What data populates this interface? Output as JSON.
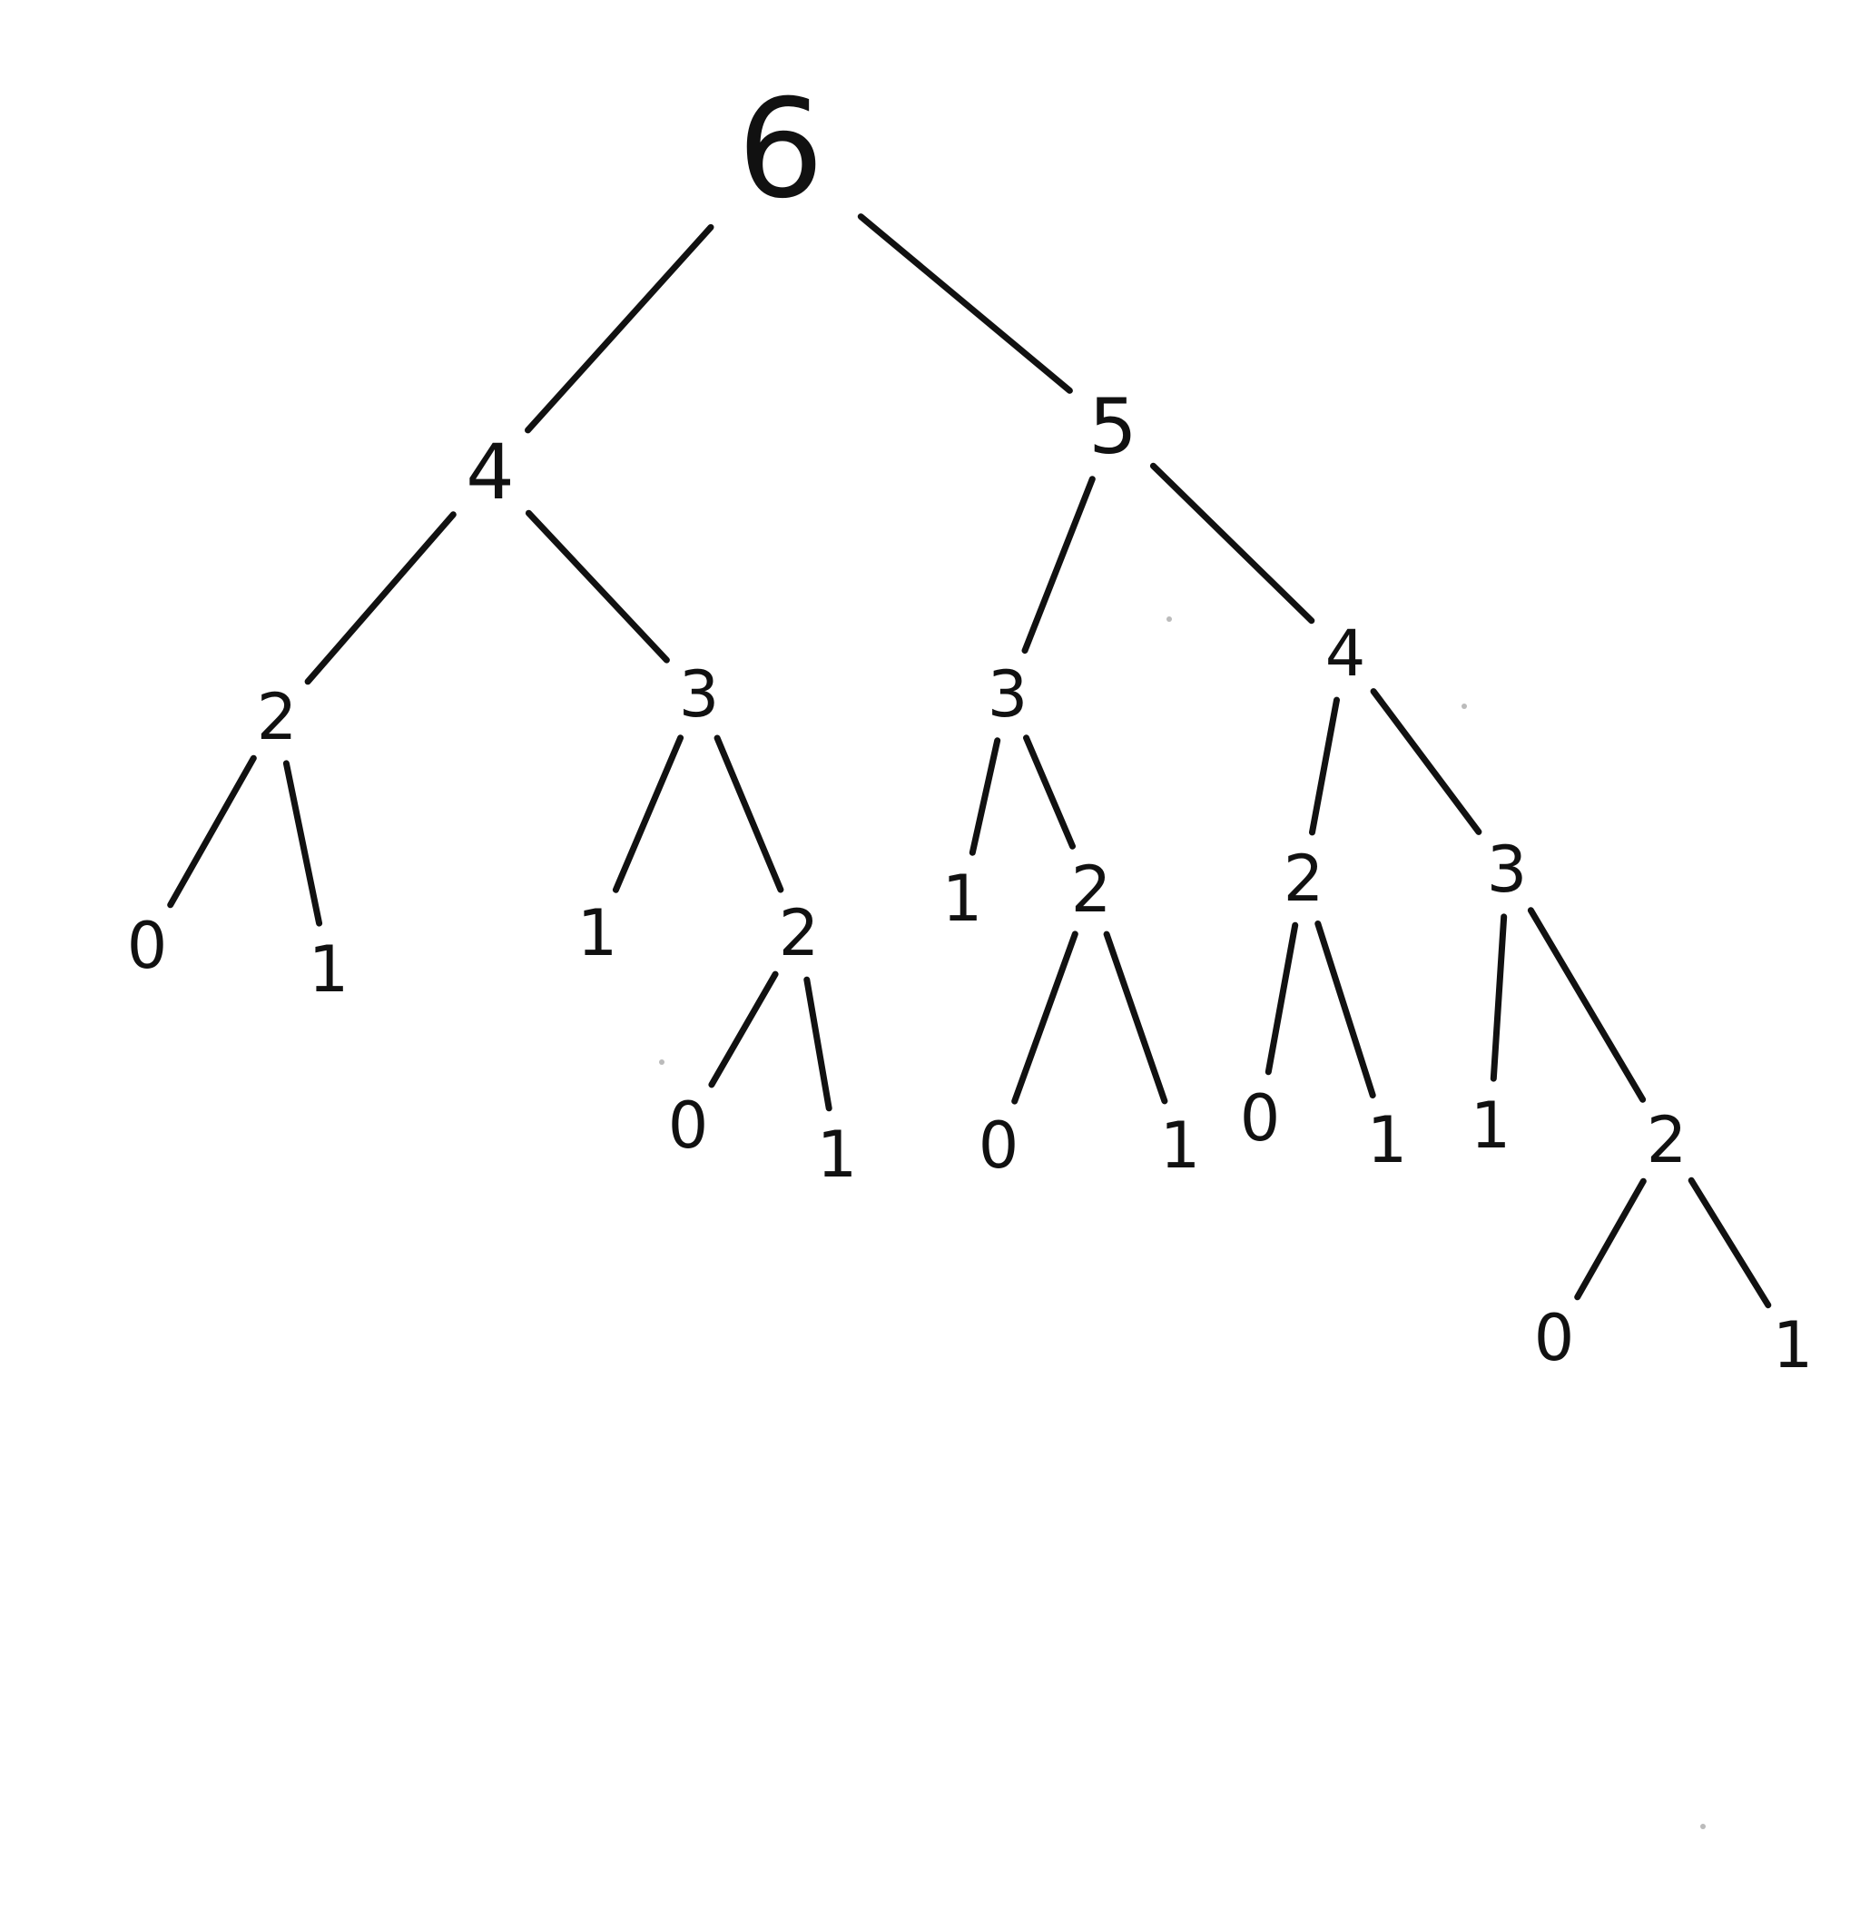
{
  "diagram": {
    "type": "tree",
    "root": {
      "label": "6",
      "children": [
        {
          "label": "4",
          "children": [
            {
              "label": "2",
              "children": [
                {
                  "label": "0"
                },
                {
                  "label": "1"
                }
              ]
            },
            {
              "label": "3",
              "children": [
                {
                  "label": "1"
                },
                {
                  "label": "2",
                  "children": [
                    {
                      "label": "0"
                    },
                    {
                      "label": "1"
                    }
                  ]
                }
              ]
            }
          ]
        },
        {
          "label": "5",
          "children": [
            {
              "label": "3",
              "children": [
                {
                  "label": "1"
                },
                {
                  "label": "2",
                  "children": [
                    {
                      "label": "0"
                    },
                    {
                      "label": "1"
                    }
                  ]
                }
              ]
            },
            {
              "label": "4",
              "children": [
                {
                  "label": "2",
                  "children": [
                    {
                      "label": "0"
                    },
                    {
                      "label": "1"
                    }
                  ]
                },
                {
                  "label": "3",
                  "children": [
                    {
                      "label": "1"
                    },
                    {
                      "label": "2",
                      "children": [
                        {
                          "label": "0"
                        },
                        {
                          "label": "1"
                        }
                      ]
                    }
                  ]
                }
              ]
            }
          ]
        }
      ]
    }
  },
  "colors": {
    "ink": "#111111",
    "background": "#ffffff"
  }
}
